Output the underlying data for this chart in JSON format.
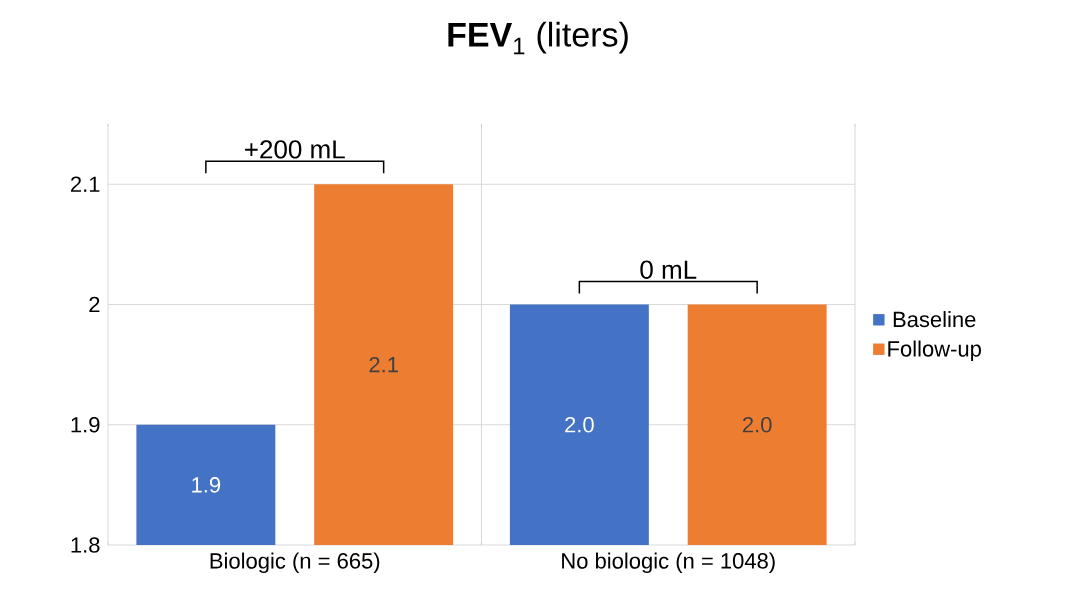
{
  "chart_data": {
    "type": "bar",
    "title": "**FEV**$_{1}$ (liters)",
    "categories": [
      "Biologic (n = 665)",
      "No biologic (n = 1048)"
    ],
    "series": [
      {
        "name": "Baseline",
        "color": "#4472c4",
        "values": [
          1.9,
          2.0
        ],
        "value_labels": [
          "1.9",
          "2.0"
        ]
      },
      {
        "name": "Follow-up",
        "color": "#ed7d31",
        "values": [
          2.1,
          2.0
        ],
        "value_labels": [
          "2.1",
          "2.0"
        ]
      }
    ],
    "ylim": [
      1.8,
      2.15
    ],
    "yticks": [
      1.8,
      1.9,
      2,
      2.1
    ],
    "grid": true,
    "legend": "right",
    "annotations": [
      "+200 mL",
      "0 mL"
    ]
  }
}
